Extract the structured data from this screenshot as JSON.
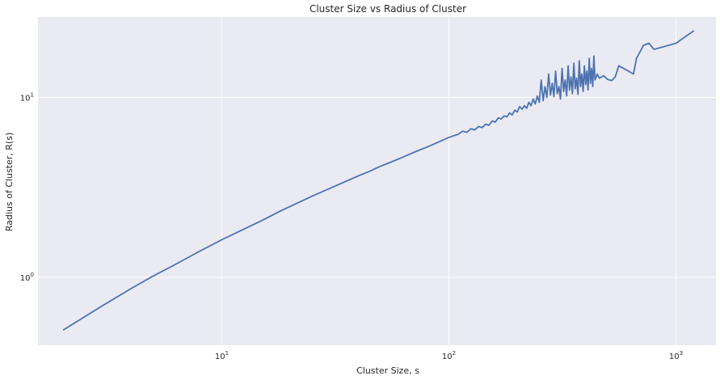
{
  "chart_data": {
    "type": "line",
    "title": "Cluster Size vs Radius of Cluster",
    "xlabel": "Cluster Size, s",
    "ylabel": "Radius of Cluster, R(s)",
    "xscale": "log",
    "yscale": "log",
    "xlim": [
      1.55,
      1500
    ],
    "ylim": [
      0.42,
      28
    ],
    "grid": true,
    "background_color": "#eaeaf2",
    "grid_color": "#ffffff",
    "line_color": "#4c72b0",
    "x_ticks": [
      {
        "value": 10,
        "base": "10",
        "exp": "1"
      },
      {
        "value": 100,
        "base": "10",
        "exp": "2"
      },
      {
        "value": 1000,
        "base": "10",
        "exp": "3"
      }
    ],
    "y_ticks": [
      {
        "value": 1,
        "base": "10",
        "exp": "0"
      },
      {
        "value": 10,
        "base": "10",
        "exp": "1"
      }
    ],
    "series": [
      {
        "x": [
          2,
          3,
          4,
          5,
          6,
          8,
          10,
          12,
          15,
          18,
          20,
          25,
          30,
          35,
          40,
          45,
          50,
          55,
          60,
          70,
          80,
          90,
          100,
          110,
          115,
          120,
          125,
          130,
          135,
          140,
          145,
          150,
          155,
          160,
          165,
          170,
          175,
          180,
          185,
          190,
          195,
          200,
          205,
          210,
          215,
          220,
          225,
          230,
          235,
          240,
          245,
          250,
          255,
          260,
          265,
          270,
          275,
          280,
          285,
          290,
          295,
          300,
          305,
          310,
          315,
          320,
          325,
          330,
          335,
          340,
          345,
          350,
          355,
          360,
          365,
          370,
          375,
          380,
          385,
          390,
          395,
          400,
          405,
          410,
          415,
          420,
          425,
          430,
          435,
          440,
          450,
          460,
          480,
          500,
          520,
          540,
          560,
          650,
          670,
          720,
          760,
          800,
          1000,
          1200
        ],
        "y": [
          0.51,
          0.7,
          0.87,
          1.02,
          1.15,
          1.4,
          1.62,
          1.81,
          2.07,
          2.33,
          2.48,
          2.83,
          3.13,
          3.41,
          3.67,
          3.9,
          4.15,
          4.35,
          4.55,
          4.95,
          5.3,
          5.65,
          6.0,
          6.25,
          6.5,
          6.4,
          6.7,
          6.6,
          6.9,
          6.8,
          7.1,
          7.0,
          7.4,
          7.3,
          7.7,
          7.6,
          7.9,
          7.8,
          8.2,
          8.0,
          8.5,
          8.3,
          8.9,
          8.6,
          9.0,
          8.7,
          9.4,
          9.0,
          9.8,
          9.2,
          10.2,
          9.4,
          12.5,
          9.6,
          11.5,
          10.0,
          13.5,
          10.3,
          12.0,
          10.1,
          14.0,
          10.5,
          11.5,
          9.8,
          14.5,
          10.8,
          12.5,
          10.2,
          15.0,
          11.0,
          13.0,
          10.5,
          15.5,
          11.2,
          12.8,
          10.4,
          16.0,
          11.5,
          13.5,
          10.8,
          15.0,
          11.8,
          14.0,
          11.0,
          16.5,
          12.0,
          14.5,
          11.5,
          17.0,
          12.5,
          13.5,
          12.8,
          13.2,
          12.6,
          12.4,
          13.0,
          15.0,
          13.5,
          16.5,
          19.5,
          20.0,
          18.5,
          20.0,
          23.5
        ]
      }
    ]
  }
}
